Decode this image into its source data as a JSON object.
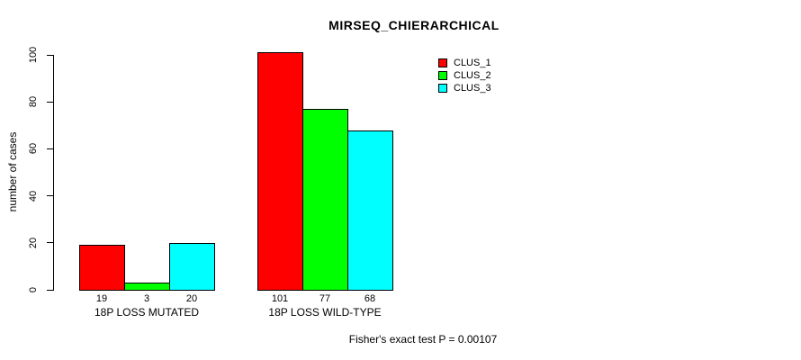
{
  "chart_data": {
    "type": "bar",
    "title": "MIRSEQ_CHIERARCHICAL",
    "xlabel": "",
    "ylabel": "number of cases",
    "categories": [
      "18P LOSS MUTATED",
      "18P LOSS WILD-TYPE"
    ],
    "series": [
      {
        "name": "CLUS_1",
        "color": "#FF0000",
        "values": [
          19,
          101
        ]
      },
      {
        "name": "CLUS_2",
        "color": "#00FF00",
        "values": [
          3,
          77
        ]
      },
      {
        "name": "CLUS_3",
        "color": "#00FFFF",
        "values": [
          20,
          68
        ]
      }
    ],
    "bar_value_labels": [
      [
        "19",
        "3",
        "20"
      ],
      [
        "101",
        "77",
        "68"
      ]
    ],
    "yticks": [
      "0",
      "20",
      "40",
      "60",
      "80",
      "100"
    ],
    "ylim": [
      0,
      100
    ],
    "grid": false,
    "legend_position": "top-right",
    "legend_entries": [
      "CLUS_1",
      "CLUS_2",
      "CLUS_3"
    ],
    "annotation": "Fisher's exact test P = 0.00107",
    "background_color": "#FFFFFF",
    "axis_color": "#000000"
  }
}
